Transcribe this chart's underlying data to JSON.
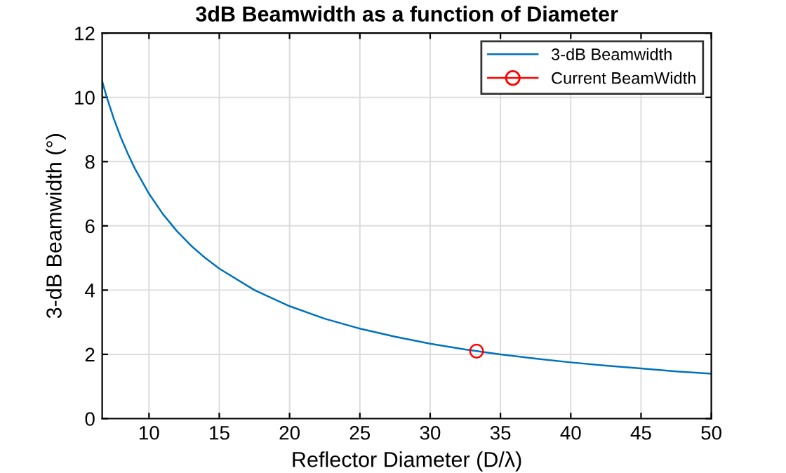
{
  "chart_data": {
    "type": "line",
    "title": "3dB Beamwidth as a function of Diameter",
    "xlabel": "Reflector Diameter (D/λ)",
    "ylabel": "3-dB Beamwidth (°)",
    "series": [
      {
        "name": "3-dB Beamwidth",
        "color": "#0072bd",
        "marker": "none",
        "x": [
          6.67,
          7,
          7.5,
          8,
          8.5,
          9,
          10,
          11,
          12,
          13,
          14,
          15,
          17.5,
          20,
          22.5,
          25,
          27.5,
          30,
          32.5,
          35,
          37.5,
          40,
          42.5,
          45,
          47.5,
          50
        ],
        "values": [
          10.5,
          10.0,
          9.33,
          8.75,
          8.24,
          7.78,
          7.0,
          6.36,
          5.83,
          5.38,
          5.0,
          4.67,
          4.0,
          3.5,
          3.11,
          2.8,
          2.55,
          2.33,
          2.15,
          2.0,
          1.87,
          1.75,
          1.65,
          1.56,
          1.47,
          1.4
        ]
      },
      {
        "name": "Current BeamWidth",
        "color": "#ff0000",
        "type": "scatter",
        "marker": "circle",
        "x": [
          33.3
        ],
        "values": [
          2.1
        ]
      }
    ],
    "xlim": [
      6.67,
      50
    ],
    "xticks": [
      10,
      15,
      20,
      25,
      30,
      35,
      40,
      45,
      50
    ],
    "ylim": [
      0,
      12
    ],
    "yticks": [
      0,
      2,
      4,
      6,
      8,
      10,
      12
    ],
    "grid": true,
    "legend": "top right"
  }
}
